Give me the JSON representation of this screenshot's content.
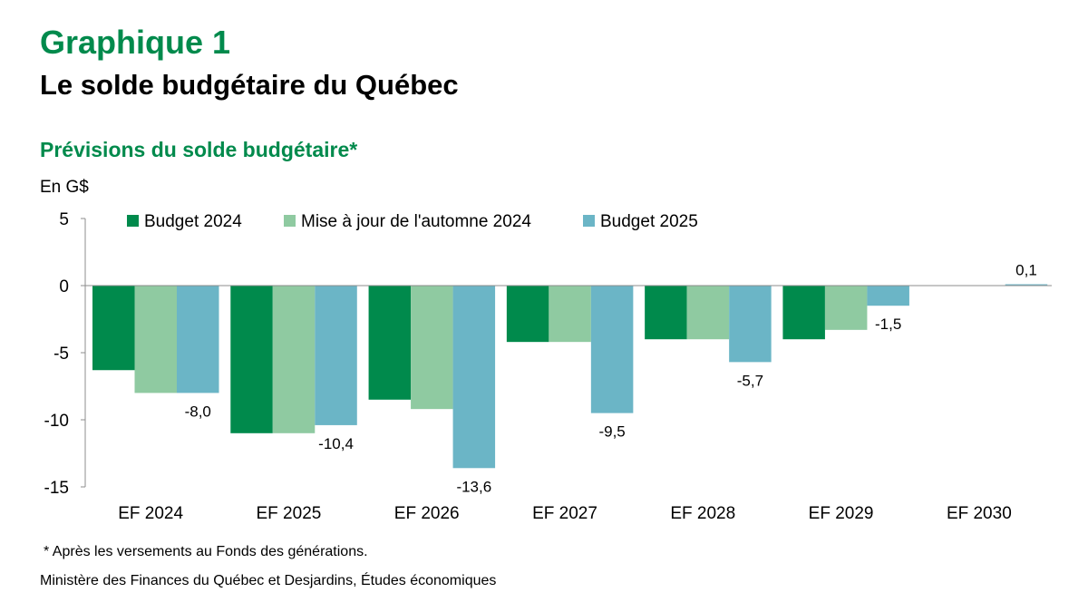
{
  "header": {
    "title": "Graphique 1",
    "subtitle": "Le solde budgétaire du Québec"
  },
  "chart_data": {
    "type": "bar",
    "title": "Prévisions du solde budgétaire*",
    "ylabel": "En G$",
    "xlabel": "",
    "ylim": [
      -15,
      5
    ],
    "yticks": [
      5,
      0,
      -5,
      -10,
      -15
    ],
    "categories": [
      "EF 2024",
      "EF 2025",
      "EF 2026",
      "EF 2027",
      "EF 2028",
      "EF 2029",
      "EF 2030"
    ],
    "series": [
      {
        "name": "Budget 2024",
        "color": "#008a4c",
        "values": [
          -6.3,
          -11.0,
          -8.5,
          -4.2,
          -4.0,
          -4.0,
          null
        ]
      },
      {
        "name": "Mise à jour de l'automne 2024",
        "color": "#8fcaa1",
        "values": [
          -8.0,
          -11.0,
          -9.2,
          -4.2,
          -4.0,
          -3.3,
          null
        ]
      },
      {
        "name": "Budget 2025",
        "color": "#6bb5c6",
        "values": [
          -8.0,
          -10.4,
          -13.6,
          -9.5,
          -5.7,
          -1.5,
          0.1
        ]
      }
    ],
    "data_labels": {
      "series": "Budget 2025",
      "labels": [
        "-8,0",
        "-10,4",
        "-13,6",
        "-9,5",
        "-5,7",
        "-1,5",
        "0,1"
      ]
    },
    "legend_position": "top",
    "grid": false
  },
  "footer": {
    "footnote": "* Après les versements au Fonds des générations.",
    "source": "Ministère des Finances du Québec et Desjardins, Études économiques"
  }
}
